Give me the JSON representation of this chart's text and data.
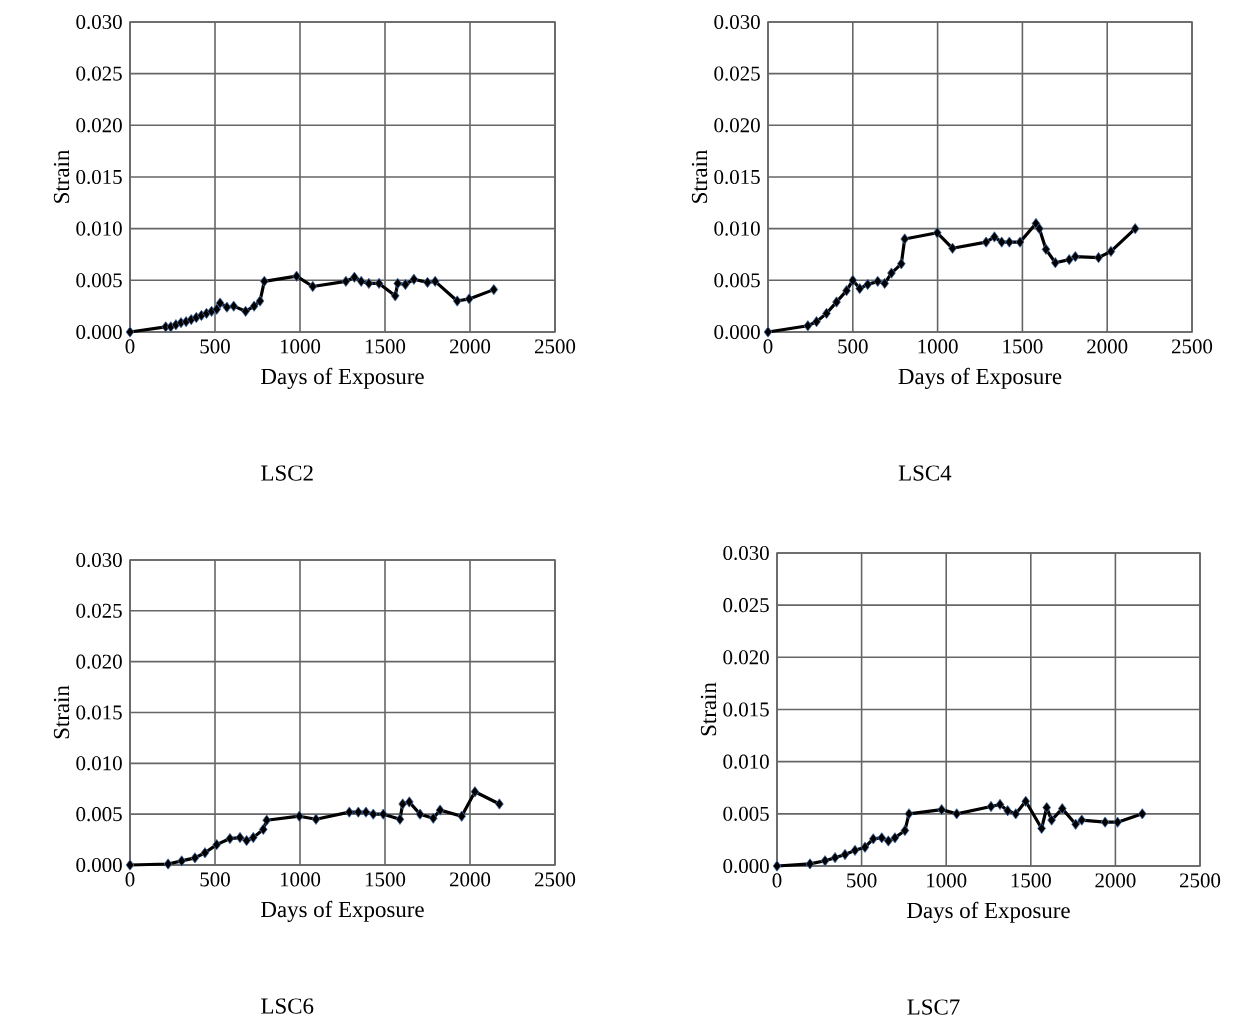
{
  "chart_data": [
    {
      "type": "line",
      "title": "LSC2",
      "xlabel": "Days of Exposure",
      "ylabel": "Strain",
      "grid": true,
      "marker": "diamond",
      "line_style": "solid",
      "xlim": [
        0,
        2500
      ],
      "xticks": [
        0,
        500,
        1000,
        1500,
        2000,
        2500
      ],
      "ylim": [
        0,
        0.03
      ],
      "yticks": [
        {
          "value": 0,
          "label": "0.000"
        },
        {
          "value": 0.005,
          "label": "0.005"
        },
        {
          "value": 0.01,
          "label": "0.010"
        },
        {
          "value": 0.015,
          "label": "0.015"
        },
        {
          "value": 0.02,
          "label": "0.020"
        },
        {
          "value": 0.025,
          "label": "0.025"
        },
        {
          "value": 0.03,
          "label": "0.030"
        }
      ],
      "series": [
        {
          "color": "#000000",
          "x": [
            0,
            210,
            240,
            270,
            300,
            330,
            360,
            390,
            420,
            450,
            480,
            510,
            530,
            570,
            610,
            680,
            730,
            765,
            790,
            980,
            1075,
            1270,
            1320,
            1360,
            1405,
            1465,
            1560,
            1575,
            1620,
            1670,
            1750,
            1795,
            1925,
            1995,
            2140
          ],
          "values": [
            0,
            0.0005,
            0.0005,
            0.0007,
            0.0009,
            0.001,
            0.0012,
            0.0014,
            0.0016,
            0.0018,
            0.002,
            0.0022,
            0.0028,
            0.0024,
            0.0025,
            0.002,
            0.0025,
            0.003,
            0.0049,
            0.0054,
            0.0044,
            0.0049,
            0.0053,
            0.0049,
            0.0047,
            0.0047,
            0.0035,
            0.0047,
            0.0046,
            0.0051,
            0.0048,
            0.0049,
            0.003,
            0.0032,
            0.0041
          ]
        }
      ]
    },
    {
      "type": "line",
      "title": "LSC4",
      "xlabel": "Days of Exposure",
      "ylabel": "Strain",
      "grid": true,
      "marker": "diamond",
      "line_style": "solid",
      "xlim": [
        0,
        2500
      ],
      "xticks": [
        0,
        500,
        1000,
        1500,
        2000,
        2500
      ],
      "ylim": [
        0,
        0.03
      ],
      "yticks": [
        {
          "value": 0,
          "label": "0.000"
        },
        {
          "value": 0.005,
          "label": "0.005"
        },
        {
          "value": 0.01,
          "label": "0.010"
        },
        {
          "value": 0.015,
          "label": "0.015"
        },
        {
          "value": 0.02,
          "label": "0.020"
        },
        {
          "value": 0.025,
          "label": "0.025"
        },
        {
          "value": 0.03,
          "label": "0.030"
        }
      ],
      "series": [
        {
          "color": "#000000",
          "x": [
            0,
            235,
            286,
            345,
            404,
            463,
            500,
            541,
            588,
            647,
            688,
            728,
            786,
            806,
            998,
            1088,
            1286,
            1335,
            1378,
            1423,
            1486,
            1580,
            1600,
            1639,
            1694,
            1776,
            1812,
            1949,
            2022,
            2165
          ],
          "values": [
            0,
            0.0006,
            0.001,
            0.0018,
            0.0029,
            0.004,
            0.005,
            0.0042,
            0.0046,
            0.0049,
            0.0047,
            0.0057,
            0.0066,
            0.009,
            0.0096,
            0.0081,
            0.0087,
            0.0092,
            0.0087,
            0.0087,
            0.0087,
            0.0105,
            0.01,
            0.008,
            0.0067,
            0.007,
            0.0073,
            0.0072,
            0.0078,
            0.01
          ]
        }
      ]
    },
    {
      "type": "line",
      "title": "LSC6",
      "xlabel": "Days of Exposure",
      "ylabel": "Strain",
      "grid": true,
      "marker": "diamond",
      "line_style": "solid",
      "xlim": [
        0,
        2500
      ],
      "xticks": [
        0,
        500,
        1000,
        1500,
        2000,
        2500
      ],
      "ylim": [
        0,
        0.03
      ],
      "yticks": [
        {
          "value": 0,
          "label": "0.000"
        },
        {
          "value": 0.005,
          "label": "0.005"
        },
        {
          "value": 0.01,
          "label": "0.010"
        },
        {
          "value": 0.015,
          "label": "0.015"
        },
        {
          "value": 0.02,
          "label": "0.020"
        },
        {
          "value": 0.025,
          "label": "0.025"
        },
        {
          "value": 0.03,
          "label": "0.030"
        }
      ],
      "series": [
        {
          "color": "#000000",
          "x": [
            0,
            224,
            304,
            382,
            441,
            510,
            588,
            647,
            686,
            725,
            784,
            804,
            996,
            1094,
            1290,
            1343,
            1388,
            1431,
            1490,
            1588,
            1604,
            1643,
            1706,
            1784,
            1824,
            1951,
            2029,
            2173
          ],
          "values": [
            0,
            0.0001,
            0.0004,
            0.0007,
            0.0012,
            0.002,
            0.0026,
            0.0027,
            0.0024,
            0.0027,
            0.0035,
            0.0044,
            0.0048,
            0.0045,
            0.0052,
            0.0052,
            0.0052,
            0.005,
            0.005,
            0.0045,
            0.006,
            0.0062,
            0.005,
            0.0046,
            0.0054,
            0.0048,
            0.0072,
            0.006
          ]
        }
      ]
    },
    {
      "type": "line",
      "title": "LSC7",
      "xlabel": "Days of Exposure",
      "ylabel": "Strain",
      "grid": true,
      "marker": "diamond",
      "line_style": "solid",
      "xlim": [
        0,
        2500
      ],
      "xticks": [
        0,
        500,
        1000,
        1500,
        2000,
        2500
      ],
      "ylim": [
        0,
        0.03
      ],
      "yticks": [
        {
          "value": 0,
          "label": "0.000"
        },
        {
          "value": 0.005,
          "label": "0.005"
        },
        {
          "value": 0.01,
          "label": "0.010"
        },
        {
          "value": 0.015,
          "label": "0.015"
        },
        {
          "value": 0.02,
          "label": "0.020"
        },
        {
          "value": 0.025,
          "label": "0.025"
        },
        {
          "value": 0.03,
          "label": "0.030"
        }
      ],
      "series": [
        {
          "color": "#000000",
          "x": [
            0,
            195,
            284,
            343,
            402,
            461,
            520,
            569,
            619,
            658,
            697,
            756,
            780,
            973,
            1062,
            1265,
            1318,
            1363,
            1411,
            1470,
            1564,
            1594,
            1623,
            1686,
            1765,
            1801,
            1939,
            2013,
            2159
          ],
          "values": [
            0,
            0.0002,
            0.0005,
            0.0008,
            0.0011,
            0.0015,
            0.0018,
            0.0026,
            0.0027,
            0.0024,
            0.0027,
            0.0034,
            0.005,
            0.0054,
            0.005,
            0.0057,
            0.0059,
            0.0053,
            0.005,
            0.0062,
            0.0036,
            0.0056,
            0.0044,
            0.0055,
            0.004,
            0.0044,
            0.0042,
            0.0042,
            0.005
          ]
        }
      ]
    }
  ]
}
